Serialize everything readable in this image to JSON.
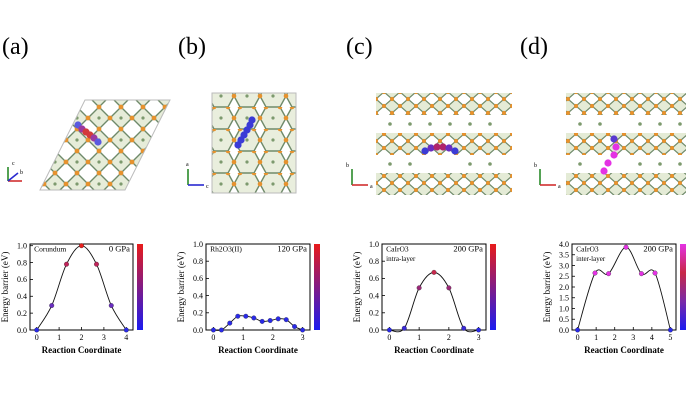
{
  "panels": [
    {
      "letter": "(a)"
    },
    {
      "letter": "(b)"
    },
    {
      "letter": "(c)"
    },
    {
      "letter": "(d)"
    }
  ],
  "structures": [
    {
      "axes": [
        "c",
        "b"
      ],
      "migration_color": "#d33a3a"
    },
    {
      "axes": [
        "a",
        "c"
      ],
      "migration_color": "#3b3bd6"
    },
    {
      "axes": [
        "b",
        "a"
      ],
      "migration_color": "#b0246b"
    },
    {
      "axes": [
        "b",
        "a"
      ],
      "migration_color": "#e432e4"
    }
  ],
  "chart_data": [
    {
      "type": "line",
      "title": "",
      "annotations": [
        "Corundum",
        "0 GPa"
      ],
      "xlabel": "Reaction Coordinate",
      "ylabel": "Energy barrier (eV)",
      "xlim": [
        -0.3,
        4.3
      ],
      "ylim": [
        0,
        1.02
      ],
      "xticks": [
        "0",
        "1",
        "2",
        "3",
        "4"
      ],
      "yticks": [
        "0.0",
        "0.2",
        "0.4",
        "0.6",
        "0.8",
        "1.0"
      ],
      "x": [
        0,
        0.67,
        1.33,
        2,
        2.67,
        3.33,
        4
      ],
      "values": [
        0.0,
        0.29,
        0.78,
        1.0,
        0.78,
        0.29,
        0.0
      ],
      "point_colors": [
        "#2a2ae8",
        "#6a2ec0",
        "#c0245a",
        "#e8201e",
        "#c0245a",
        "#6a2ec0",
        "#2a2ae8"
      ],
      "colorbar": [
        "#1b1bf0",
        "#e81b1b"
      ]
    },
    {
      "type": "line",
      "title": "",
      "annotations": [
        "Rh2O3(II)",
        "120 GPa"
      ],
      "xlabel": "Reaction Coordinate",
      "ylabel": "Energy barrier (eV)",
      "xlim": [
        -0.25,
        3.25
      ],
      "ylim": [
        0,
        1.0
      ],
      "xticks": [
        "0",
        "1",
        "2",
        "3"
      ],
      "yticks": [
        "0.0",
        "0.2",
        "0.4",
        "0.6",
        "0.8",
        "1.0"
      ],
      "x": [
        0,
        0.27,
        0.55,
        0.82,
        1.09,
        1.36,
        1.64,
        1.91,
        2.18,
        2.45,
        2.73,
        3.0
      ],
      "values": [
        0.0,
        0.0,
        0.08,
        0.16,
        0.16,
        0.14,
        0.1,
        0.11,
        0.13,
        0.12,
        0.04,
        0.0
      ],
      "point_colors": [
        "#2a2ae8",
        "#2a2ae8",
        "#2a2ae8",
        "#2a2ae8",
        "#2a2ae8",
        "#2a2ae8",
        "#2a2ae8",
        "#2a2ae8",
        "#2a2ae8",
        "#2a2ae8",
        "#2a2ae8",
        "#2a2ae8"
      ],
      "colorbar": [
        "#1b1bf0",
        "#e81b1b"
      ]
    },
    {
      "type": "line",
      "title": "",
      "annotations": [
        "CaIrO3",
        "200 GPa",
        "intra-layer"
      ],
      "xlabel": "Reaction Coordinate",
      "ylabel": "Energy barrier (eV)",
      "xlim": [
        -0.25,
        3.25
      ],
      "ylim": [
        0,
        1.0
      ],
      "xticks": [
        "0",
        "1",
        "2",
        "3"
      ],
      "yticks": [
        "0.0",
        "0.2",
        "0.4",
        "0.6",
        "0.8",
        "1.0"
      ],
      "x": [
        0,
        0.5,
        1.0,
        1.5,
        2.0,
        2.5,
        3.0
      ],
      "values": [
        0.0,
        0.02,
        0.49,
        0.67,
        0.49,
        0.02,
        0.0
      ],
      "point_colors": [
        "#2a2ae8",
        "#3a2ad8",
        "#9a2878",
        "#c8284c",
        "#9a2878",
        "#3a2ad8",
        "#2a2ae8"
      ],
      "colorbar": [
        "#1b1bf0",
        "#e81b1b"
      ]
    },
    {
      "type": "line",
      "title": "",
      "annotations": [
        "CaIrO3",
        "200 GPa",
        "inter-layer"
      ],
      "xlabel": "Reaction Coordinate",
      "ylabel": "Energy barrier (eV)",
      "xlim": [
        -0.3,
        5.3
      ],
      "ylim": [
        0,
        4.0
      ],
      "xticks": [
        "0",
        "1",
        "2",
        "3",
        "4",
        "5"
      ],
      "yticks": [
        "0.0",
        "0.5",
        "1.0",
        "1.5",
        "2.0",
        "2.5",
        "3.0",
        "3.5",
        "4.0"
      ],
      "x": [
        0,
        0.94,
        1.67,
        2.61,
        3.44,
        4.17,
        5.0
      ],
      "values": [
        0.0,
        2.65,
        2.62,
        3.85,
        2.62,
        2.65,
        0.0
      ],
      "point_colors": [
        "#2a2ae8",
        "#e432e4",
        "#e432e4",
        "#e432e4",
        "#e432e4",
        "#e432e4",
        "#2a2ae8"
      ],
      "colorbar": [
        "#1b1bf0",
        "#7a2aa8",
        "#c82848",
        "#e432e4"
      ]
    }
  ]
}
